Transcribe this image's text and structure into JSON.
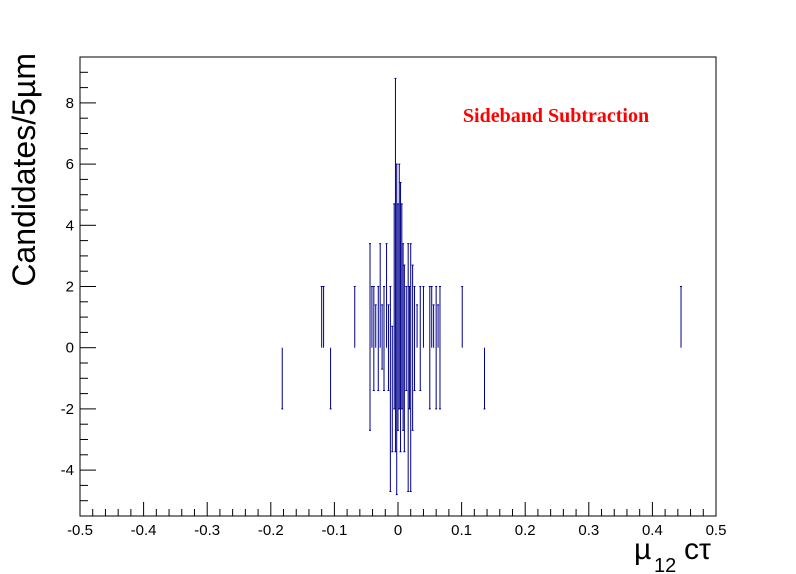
{
  "chart_data": {
    "type": "bar",
    "style": "histogram-lines",
    "ylabel": "Candidates/5µm",
    "xlabel_parts": {
      "mu": "µ",
      "sub": "12",
      "rest": "cτ"
    },
    "annotation": "Sideband Subtraction",
    "xlim": [
      -0.5,
      0.5
    ],
    "ylim": [
      -5.5,
      9.5
    ],
    "x_ticks": [
      -0.5,
      -0.4,
      -0.3,
      -0.2,
      -0.1,
      0,
      0.1,
      0.2,
      0.3,
      0.4,
      0.5
    ],
    "x_tick_labels": [
      "-0.5",
      "-0.4",
      "-0.3",
      "-0.2",
      "-0.1",
      "0",
      "0.1",
      "0.2",
      "0.3",
      "0.4",
      "0.5"
    ],
    "y_ticks": [
      -4,
      -2,
      0,
      2,
      4,
      6,
      8
    ],
    "y_tick_labels": [
      "-4",
      "-2",
      "0",
      "2",
      "4",
      "6",
      "8"
    ],
    "color": "#00008b",
    "annotation_color": "#ff0000",
    "bins": [
      {
        "x": -0.182,
        "low": -2,
        "high": 0
      },
      {
        "x": -0.12,
        "low": 0,
        "high": 2
      },
      {
        "x": -0.117,
        "low": 0,
        "high": 2
      },
      {
        "x": -0.106,
        "low": -2,
        "high": 0
      },
      {
        "x": -0.068,
        "low": 0,
        "high": 2
      },
      {
        "x": -0.044,
        "low": -2.7,
        "high": 3.4
      },
      {
        "x": -0.041,
        "low": 0,
        "high": 2
      },
      {
        "x": -0.038,
        "low": -1.4,
        "high": 2
      },
      {
        "x": -0.035,
        "low": 0,
        "high": 1.4
      },
      {
        "x": -0.031,
        "low": -1.4,
        "high": 2
      },
      {
        "x": -0.028,
        "low": 0,
        "high": 3.4
      },
      {
        "x": -0.025,
        "low": -0.7,
        "high": 1.4
      },
      {
        "x": -0.022,
        "low": -1.4,
        "high": 2
      },
      {
        "x": -0.018,
        "low": 0,
        "high": 3.4
      },
      {
        "x": -0.015,
        "low": -1.4,
        "high": 1.4
      },
      {
        "x": -0.012,
        "low": -4.7,
        "high": 2
      },
      {
        "x": -0.009,
        "low": -3.4,
        "high": 0.7
      },
      {
        "x": -0.006,
        "low": -2,
        "high": 4.7
      },
      {
        "x": -0.004,
        "low": -3.4,
        "high": 8.8
      },
      {
        "x": -0.002,
        "low": -4.8,
        "high": 6
      },
      {
        "x": 0.0,
        "low": -2.7,
        "high": 4.7
      },
      {
        "x": 0.002,
        "low": -2,
        "high": 6
      },
      {
        "x": 0.004,
        "low": -3.4,
        "high": 5.4
      },
      {
        "x": 0.006,
        "low": -2,
        "high": 4.7
      },
      {
        "x": 0.008,
        "low": -2.7,
        "high": 3.4
      },
      {
        "x": 0.01,
        "low": -3.4,
        "high": 2.7
      },
      {
        "x": 0.013,
        "low": -1.4,
        "high": 2
      },
      {
        "x": 0.016,
        "low": -4.7,
        "high": 3.4
      },
      {
        "x": 0.018,
        "low": -2,
        "high": 2
      },
      {
        "x": 0.02,
        "low": -4.7,
        "high": 3.4
      },
      {
        "x": 0.023,
        "low": -2.7,
        "high": 2.7
      },
      {
        "x": 0.026,
        "low": -1.4,
        "high": 2
      },
      {
        "x": 0.03,
        "low": 0,
        "high": 1.4
      },
      {
        "x": 0.035,
        "low": -1.4,
        "high": 2
      },
      {
        "x": 0.04,
        "low": 0,
        "high": 2
      },
      {
        "x": 0.05,
        "low": -2,
        "high": 2
      },
      {
        "x": 0.053,
        "low": 0,
        "high": 2
      },
      {
        "x": 0.056,
        "low": 0,
        "high": 1.4
      },
      {
        "x": 0.06,
        "low": -2,
        "high": 2
      },
      {
        "x": 0.063,
        "low": 0,
        "high": 1.4
      },
      {
        "x": 0.066,
        "low": -2,
        "high": 2
      },
      {
        "x": 0.101,
        "low": 0,
        "high": 2
      },
      {
        "x": 0.136,
        "low": -2,
        "high": 0
      },
      {
        "x": 0.445,
        "low": 0,
        "high": 2
      }
    ]
  }
}
